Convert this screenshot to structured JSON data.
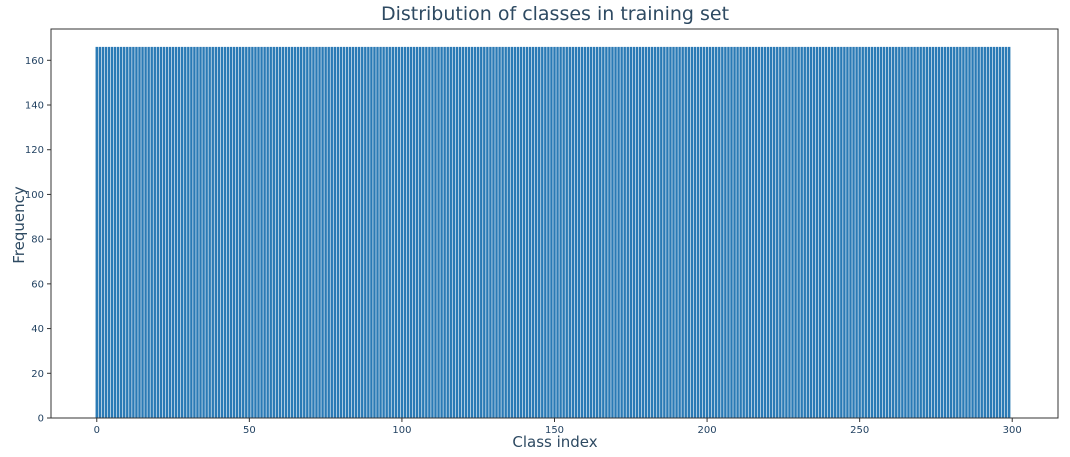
{
  "chart_data": {
    "type": "bar",
    "title": "Distribution of classes in training set",
    "xlabel": "Class index",
    "ylabel": "Frequency",
    "xlim": [
      -15,
      315
    ],
    "ylim": [
      0,
      174
    ],
    "x_ticks": [
      0,
      50,
      100,
      150,
      200,
      250,
      300
    ],
    "y_ticks": [
      0,
      20,
      40,
      60,
      80,
      100,
      120,
      140,
      160
    ],
    "x_tick_labels": [
      "0",
      "50",
      "100",
      "150",
      "200",
      "250",
      "300"
    ],
    "y_tick_labels": [
      "0",
      "20",
      "40",
      "60",
      "80",
      "100",
      "120",
      "140",
      "160"
    ],
    "categories_range": [
      0,
      299
    ],
    "value_per_category": 166,
    "bar_color": "#2a7ab5",
    "grid": false,
    "legend": "none"
  }
}
